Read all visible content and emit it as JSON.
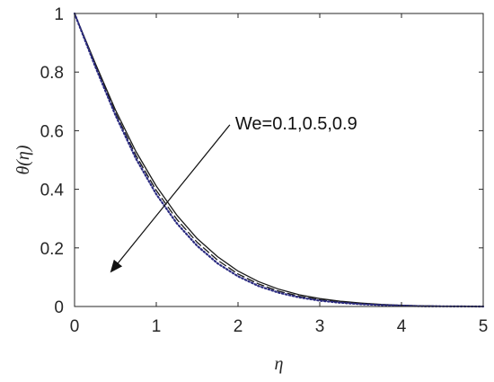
{
  "chart_data": {
    "type": "line",
    "title": "",
    "xlabel": "η",
    "ylabel": "θ(η)",
    "xlim": [
      0,
      5
    ],
    "ylim": [
      0,
      1
    ],
    "xticks": [
      0,
      1,
      2,
      3,
      4,
      5
    ],
    "xtick_labels": [
      "0",
      "1",
      "2",
      "3",
      "4",
      "5"
    ],
    "yticks": [
      0,
      0.2,
      0.4,
      0.6,
      0.8,
      1
    ],
    "ytick_labels": [
      "0",
      "0.2",
      "0.4",
      "0.6",
      "0.8",
      "1"
    ],
    "grid": false,
    "annotation": {
      "text": "We=0.1,0.5,0.9",
      "arrow_from": [
        1.9,
        0.62
      ],
      "arrow_to": [
        0.45,
        0.12
      ]
    },
    "x": [
      0,
      0.25,
      0.5,
      0.75,
      1.0,
      1.25,
      1.5,
      1.75,
      2.0,
      2.25,
      2.5,
      2.75,
      3.0,
      3.25,
      3.5,
      3.75,
      4.0,
      4.25,
      4.5,
      4.75,
      5.0
    ],
    "series": [
      {
        "values": [
          1.0,
          0.832,
          0.671,
          0.529,
          0.411,
          0.312,
          0.232,
          0.17,
          0.121,
          0.085,
          0.059,
          0.04,
          0.027,
          0.018,
          0.012,
          0.007,
          0.004,
          0.002,
          0.001,
          0.0005,
          0.0
        ],
        "style": "solid",
        "color": "#1a1a1a"
      },
      {
        "values": [
          1.0,
          0.826,
          0.661,
          0.516,
          0.396,
          0.298,
          0.219,
          0.158,
          0.111,
          0.077,
          0.052,
          0.035,
          0.023,
          0.015,
          0.009,
          0.006,
          0.003,
          0.002,
          0.001,
          0.0004,
          0.0
        ],
        "style": "dashed",
        "color": "#1a1a1a"
      },
      {
        "values": [
          1.0,
          0.821,
          0.653,
          0.505,
          0.383,
          0.284,
          0.207,
          0.147,
          0.103,
          0.07,
          0.047,
          0.031,
          0.02,
          0.013,
          0.008,
          0.005,
          0.003,
          0.001,
          0.0007,
          0.0003,
          0.0
        ],
        "style": "dotted",
        "color": "#2a2a80"
      }
    ]
  }
}
